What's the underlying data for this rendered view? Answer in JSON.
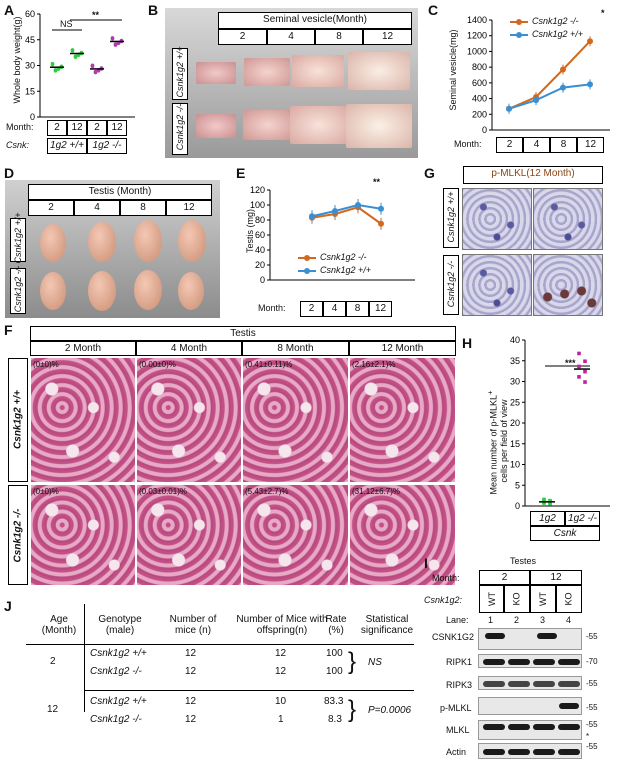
{
  "panels": {
    "a": {
      "letter": "A",
      "ylabel": "Whole body weight(g)",
      "yticks": [
        "0",
        "15",
        "30",
        "45",
        "60"
      ],
      "ns": "NS",
      "sig": "**",
      "month_label": "Month:",
      "months": [
        "2",
        "12",
        "2",
        "12"
      ],
      "csnk_label": "Csnk:",
      "genotypes": [
        "1g2 +/+",
        "1g2 -/-"
      ]
    },
    "b": {
      "letter": "B",
      "title": "Seminal vesicle(Month)",
      "months": [
        "2",
        "4",
        "8",
        "12"
      ],
      "rows": [
        "Csnk1g2 +/+",
        "Csnk1g2 -/-"
      ]
    },
    "c": {
      "letter": "C",
      "ylabel": "Seminal vesicle(mg)",
      "yticks": [
        "0",
        "200",
        "400",
        "600",
        "800",
        "1000",
        "1200",
        "1400"
      ],
      "sig": "*",
      "month_label": "Month:",
      "months": [
        "2",
        "4",
        "8",
        "12"
      ]
    },
    "d": {
      "letter": "D",
      "title": "Testis (Month)",
      "months": [
        "2",
        "4",
        "8",
        "12"
      ],
      "rows": [
        "Csnk1g2 +/+",
        "Csnk1g2 -/-"
      ]
    },
    "e": {
      "letter": "E",
      "ylabel": "Testis (mg)",
      "yticks": [
        "0",
        "20",
        "40",
        "60",
        "80",
        "100",
        "120"
      ],
      "sig": "**",
      "month_label": "Month:",
      "months": [
        "2",
        "4",
        "8",
        "12"
      ]
    },
    "f": {
      "letter": "F",
      "title": "Testis",
      "months": [
        "2 Month",
        "4 Month",
        "8 Month",
        "12 Month"
      ],
      "rows": [
        "Csnk1g2 +/+",
        "Csnk1g2 -/-"
      ],
      "pct_wt": [
        "(0±0)%",
        "(0.00±0)%",
        "(0.41±0.11)%",
        "(2.16±2.1)%"
      ],
      "pct_ko": [
        "(0±0)%",
        "(0.03±0.01)%",
        "(5.43±2.7)%",
        "(31.12±6.7)%"
      ]
    },
    "g": {
      "letter": "G",
      "title": "p-MLKL(12 Month)",
      "rows": [
        "Csnk1g2 +/+",
        "Csnk1g2 -/-"
      ]
    },
    "h": {
      "letter": "H",
      "ylabel1": "Mean number of p-MLKL",
      "ylabel_sup": "+",
      "ylabel2": "cells per field of view",
      "yticks": [
        "0",
        "5",
        "10",
        "15",
        "20",
        "25",
        "30",
        "35",
        "40"
      ],
      "sig": "***",
      "groups": [
        "1g2 +/+",
        "1g2 -/-"
      ],
      "xlabel": "Csnk"
    },
    "i": {
      "letter": "I",
      "title": "Testes",
      "month_label": "Month:",
      "months": [
        "2",
        "12"
      ],
      "geno_label": "Csnk1g2:",
      "genos": [
        "WT",
        "KO",
        "WT",
        "KO"
      ],
      "lane_label": "Lane:",
      "lanes": [
        "1",
        "2",
        "3",
        "4"
      ],
      "blots": [
        {
          "name": "CSNK1G2",
          "mw": "-55"
        },
        {
          "name": "RIPK1",
          "mw": "-70"
        },
        {
          "name": "RIPK3",
          "mw": "-55"
        },
        {
          "name": "p-MLKL",
          "mw": "-55"
        },
        {
          "name": "MLKL",
          "mw": "-55"
        },
        {
          "name": "Actin",
          "mw": "-55"
        }
      ],
      "star": "*"
    },
    "j": {
      "letter": "J",
      "headers": [
        "Age (Month)",
        "Genotype (male)",
        "Number of mice (n)",
        "Number of Mice with offspring(n)",
        "Rate (%)",
        "Statistical significance"
      ],
      "rows": [
        {
          "age": "2",
          "genotype": "Csnk1g2 +/+",
          "n": "12",
          "offspring": "12",
          "rate": "100"
        },
        {
          "age": "",
          "genotype": "Csnk1g2 -/-",
          "n": "12",
          "offspring": "12",
          "rate": "100"
        },
        {
          "age": "12",
          "genotype": "Csnk1g2 +/+",
          "n": "12",
          "offspring": "10",
          "rate": "83.3"
        },
        {
          "age": "",
          "genotype": "Csnk1g2 -/-",
          "n": "12",
          "offspring": "1",
          "rate": "8.3"
        }
      ],
      "sig_2": "NS",
      "sig_12": "P=0.0006"
    }
  },
  "colors": {
    "ko": "#d2691e",
    "wt": "#3b8fd0",
    "green": "#2ecc40",
    "purple": "#b03ab0",
    "magenta": "#c0219c"
  },
  "chart_data": [
    {
      "type": "scatter",
      "ylabel": "Whole body weight(g)",
      "ylim": [
        0,
        60
      ],
      "categories": [
        "2 +/+",
        "12 +/+",
        "2 -/-",
        "12 -/-"
      ],
      "values": [
        29,
        37,
        28,
        44
      ]
    },
    {
      "type": "line",
      "ylabel": "Seminal vesicle(mg)",
      "ylim": [
        0,
        1400
      ],
      "x": [
        "2",
        "4",
        "8",
        "12"
      ],
      "series": [
        {
          "name": "Csnk1g2 -/-",
          "values": [
            270,
            420,
            770,
            1130
          ]
        },
        {
          "name": "Csnk1g2 +/+",
          "values": [
            270,
            380,
            540,
            580
          ]
        }
      ]
    },
    {
      "type": "line",
      "ylabel": "Testis (mg)",
      "ylim": [
        0,
        120
      ],
      "x": [
        "2",
        "4",
        "8",
        "12"
      ],
      "series": [
        {
          "name": "Csnk1g2 -/-",
          "values": [
            83,
            88,
            97,
            75
          ]
        },
        {
          "name": "Csnk1g2 +/+",
          "values": [
            85,
            92,
            100,
            95
          ]
        }
      ]
    },
    {
      "type": "scatter",
      "ylim": [
        0,
        40
      ],
      "categories": [
        "1g2 +/+",
        "1g2 -/-"
      ],
      "values": [
        1,
        33
      ]
    }
  ]
}
